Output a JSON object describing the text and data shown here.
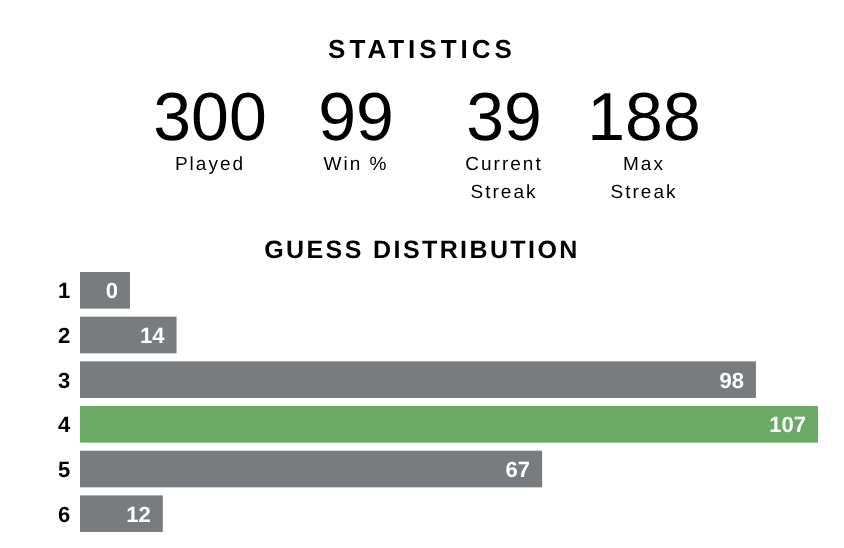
{
  "chart_data": [
    {
      "type": "other",
      "title": "STATISTICS",
      "categories": [
        "Played",
        "Win %",
        "Current Streak",
        "Max Streak"
      ],
      "values": [
        300,
        99,
        39,
        188
      ],
      "data_labels": true
    },
    {
      "type": "bar",
      "orientation": "horizontal",
      "title": "GUESS DISTRIBUTION",
      "categories": [
        "1",
        "2",
        "3",
        "4",
        "5",
        "6"
      ],
      "values": [
        0,
        14,
        98,
        107,
        67,
        12
      ],
      "colors": [
        "#787c7e",
        "#787c7e",
        "#787c7e",
        "#6aaa64",
        "#787c7e",
        "#787c7e"
      ],
      "data_labels": true
    }
  ]
}
